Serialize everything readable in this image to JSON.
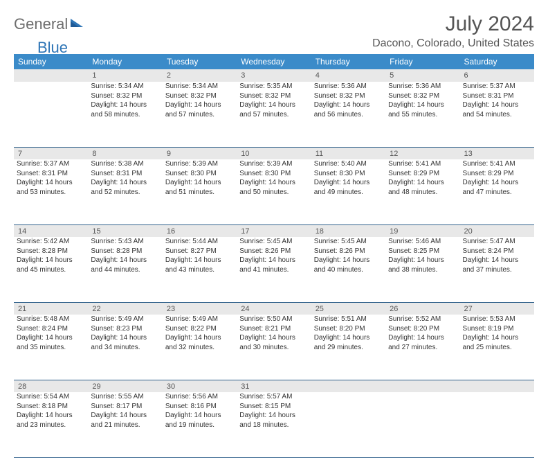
{
  "logo": {
    "word1": "General",
    "word2": "Blue"
  },
  "title": "July 2024",
  "location": "Dacono, Colorado, United States",
  "colors": {
    "header_bg": "#3b8bc9",
    "header_text": "#ffffff",
    "daynum_bg": "#e8e8e8",
    "text": "#333333",
    "rule": "#2e5f8a",
    "logo_gray": "#6e6e6e",
    "logo_blue": "#2e75b6"
  },
  "dayHeaders": [
    "Sunday",
    "Monday",
    "Tuesday",
    "Wednesday",
    "Thursday",
    "Friday",
    "Saturday"
  ],
  "weeks": [
    [
      null,
      {
        "n": "1",
        "sr": "5:34 AM",
        "ss": "8:32 PM",
        "dl": "14 hours and 58 minutes."
      },
      {
        "n": "2",
        "sr": "5:34 AM",
        "ss": "8:32 PM",
        "dl": "14 hours and 57 minutes."
      },
      {
        "n": "3",
        "sr": "5:35 AM",
        "ss": "8:32 PM",
        "dl": "14 hours and 57 minutes."
      },
      {
        "n": "4",
        "sr": "5:36 AM",
        "ss": "8:32 PM",
        "dl": "14 hours and 56 minutes."
      },
      {
        "n": "5",
        "sr": "5:36 AM",
        "ss": "8:32 PM",
        "dl": "14 hours and 55 minutes."
      },
      {
        "n": "6",
        "sr": "5:37 AM",
        "ss": "8:31 PM",
        "dl": "14 hours and 54 minutes."
      }
    ],
    [
      {
        "n": "7",
        "sr": "5:37 AM",
        "ss": "8:31 PM",
        "dl": "14 hours and 53 minutes."
      },
      {
        "n": "8",
        "sr": "5:38 AM",
        "ss": "8:31 PM",
        "dl": "14 hours and 52 minutes."
      },
      {
        "n": "9",
        "sr": "5:39 AM",
        "ss": "8:30 PM",
        "dl": "14 hours and 51 minutes."
      },
      {
        "n": "10",
        "sr": "5:39 AM",
        "ss": "8:30 PM",
        "dl": "14 hours and 50 minutes."
      },
      {
        "n": "11",
        "sr": "5:40 AM",
        "ss": "8:30 PM",
        "dl": "14 hours and 49 minutes."
      },
      {
        "n": "12",
        "sr": "5:41 AM",
        "ss": "8:29 PM",
        "dl": "14 hours and 48 minutes."
      },
      {
        "n": "13",
        "sr": "5:41 AM",
        "ss": "8:29 PM",
        "dl": "14 hours and 47 minutes."
      }
    ],
    [
      {
        "n": "14",
        "sr": "5:42 AM",
        "ss": "8:28 PM",
        "dl": "14 hours and 45 minutes."
      },
      {
        "n": "15",
        "sr": "5:43 AM",
        "ss": "8:28 PM",
        "dl": "14 hours and 44 minutes."
      },
      {
        "n": "16",
        "sr": "5:44 AM",
        "ss": "8:27 PM",
        "dl": "14 hours and 43 minutes."
      },
      {
        "n": "17",
        "sr": "5:45 AM",
        "ss": "8:26 PM",
        "dl": "14 hours and 41 minutes."
      },
      {
        "n": "18",
        "sr": "5:45 AM",
        "ss": "8:26 PM",
        "dl": "14 hours and 40 minutes."
      },
      {
        "n": "19",
        "sr": "5:46 AM",
        "ss": "8:25 PM",
        "dl": "14 hours and 38 minutes."
      },
      {
        "n": "20",
        "sr": "5:47 AM",
        "ss": "8:24 PM",
        "dl": "14 hours and 37 minutes."
      }
    ],
    [
      {
        "n": "21",
        "sr": "5:48 AM",
        "ss": "8:24 PM",
        "dl": "14 hours and 35 minutes."
      },
      {
        "n": "22",
        "sr": "5:49 AM",
        "ss": "8:23 PM",
        "dl": "14 hours and 34 minutes."
      },
      {
        "n": "23",
        "sr": "5:49 AM",
        "ss": "8:22 PM",
        "dl": "14 hours and 32 minutes."
      },
      {
        "n": "24",
        "sr": "5:50 AM",
        "ss": "8:21 PM",
        "dl": "14 hours and 30 minutes."
      },
      {
        "n": "25",
        "sr": "5:51 AM",
        "ss": "8:20 PM",
        "dl": "14 hours and 29 minutes."
      },
      {
        "n": "26",
        "sr": "5:52 AM",
        "ss": "8:20 PM",
        "dl": "14 hours and 27 minutes."
      },
      {
        "n": "27",
        "sr": "5:53 AM",
        "ss": "8:19 PM",
        "dl": "14 hours and 25 minutes."
      }
    ],
    [
      {
        "n": "28",
        "sr": "5:54 AM",
        "ss": "8:18 PM",
        "dl": "14 hours and 23 minutes."
      },
      {
        "n": "29",
        "sr": "5:55 AM",
        "ss": "8:17 PM",
        "dl": "14 hours and 21 minutes."
      },
      {
        "n": "30",
        "sr": "5:56 AM",
        "ss": "8:16 PM",
        "dl": "14 hours and 19 minutes."
      },
      {
        "n": "31",
        "sr": "5:57 AM",
        "ss": "8:15 PM",
        "dl": "14 hours and 18 minutes."
      },
      null,
      null,
      null
    ]
  ],
  "labels": {
    "sunrise": "Sunrise:",
    "sunset": "Sunset:",
    "daylight": "Daylight:"
  }
}
